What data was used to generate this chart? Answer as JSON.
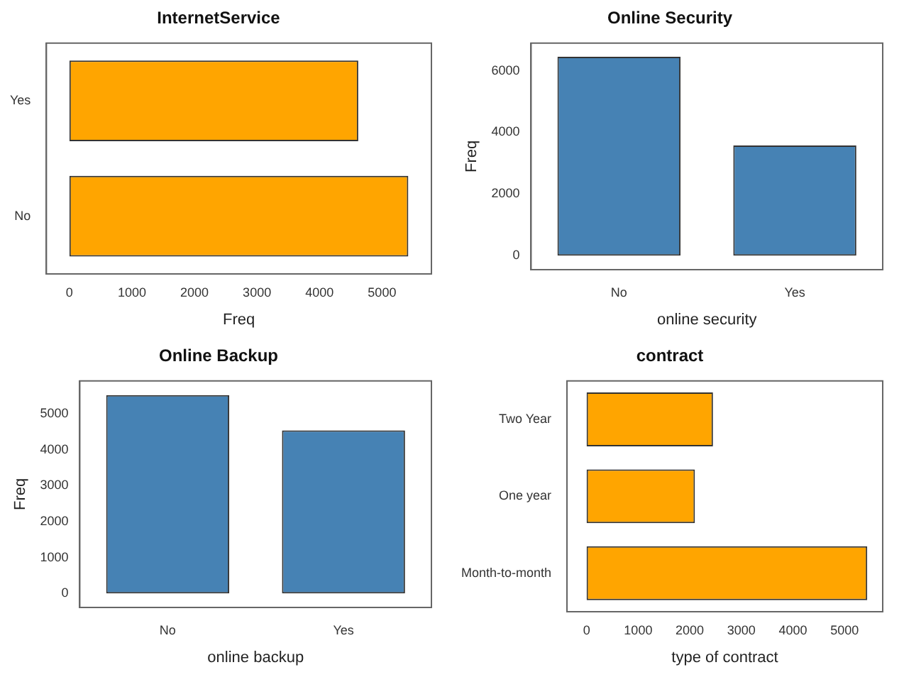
{
  "chart_data": [
    {
      "type": "bar",
      "orientation": "horizontal",
      "title": "InternetService",
      "xlabel": "Freq",
      "categories": [
        "Yes",
        "No"
      ],
      "values": [
        4620,
        5420
      ],
      "color": "#ffa500",
      "xlim": [
        -368,
        5790
      ],
      "xticks": [
        0,
        1000,
        2000,
        3000,
        4000,
        5000
      ],
      "grid": false
    },
    {
      "type": "bar",
      "title": "Online Security",
      "xlabel": "online security",
      "ylabel": "Freq",
      "categories": [
        "No",
        "Yes"
      ],
      "values": [
        6450,
        3575
      ],
      "color": "#4682b4",
      "ylim": [
        -454,
        6894
      ],
      "yticks": [
        0,
        2000,
        4000,
        6000
      ],
      "grid": false
    },
    {
      "type": "bar",
      "title": "Online Backup",
      "xlabel": "online backup",
      "ylabel": "Freq",
      "categories": [
        "No",
        "Yes"
      ],
      "values": [
        5520,
        4540
      ],
      "color": "#4682b4",
      "ylim": [
        -390,
        5915
      ],
      "yticks": [
        0,
        1000,
        2000,
        3000,
        4000,
        5000
      ],
      "grid": false
    },
    {
      "type": "bar",
      "orientation": "horizontal",
      "title": "contract",
      "xlabel": "type of contract",
      "categories": [
        "Two Year",
        "One year",
        "Month-to-month"
      ],
      "values": [
        2450,
        2100,
        5440
      ],
      "color": "#ffa500",
      "xlim": [
        -380,
        5740
      ],
      "xticks": [
        0,
        1000,
        2000,
        3000,
        4000,
        5000
      ],
      "grid": false
    }
  ]
}
